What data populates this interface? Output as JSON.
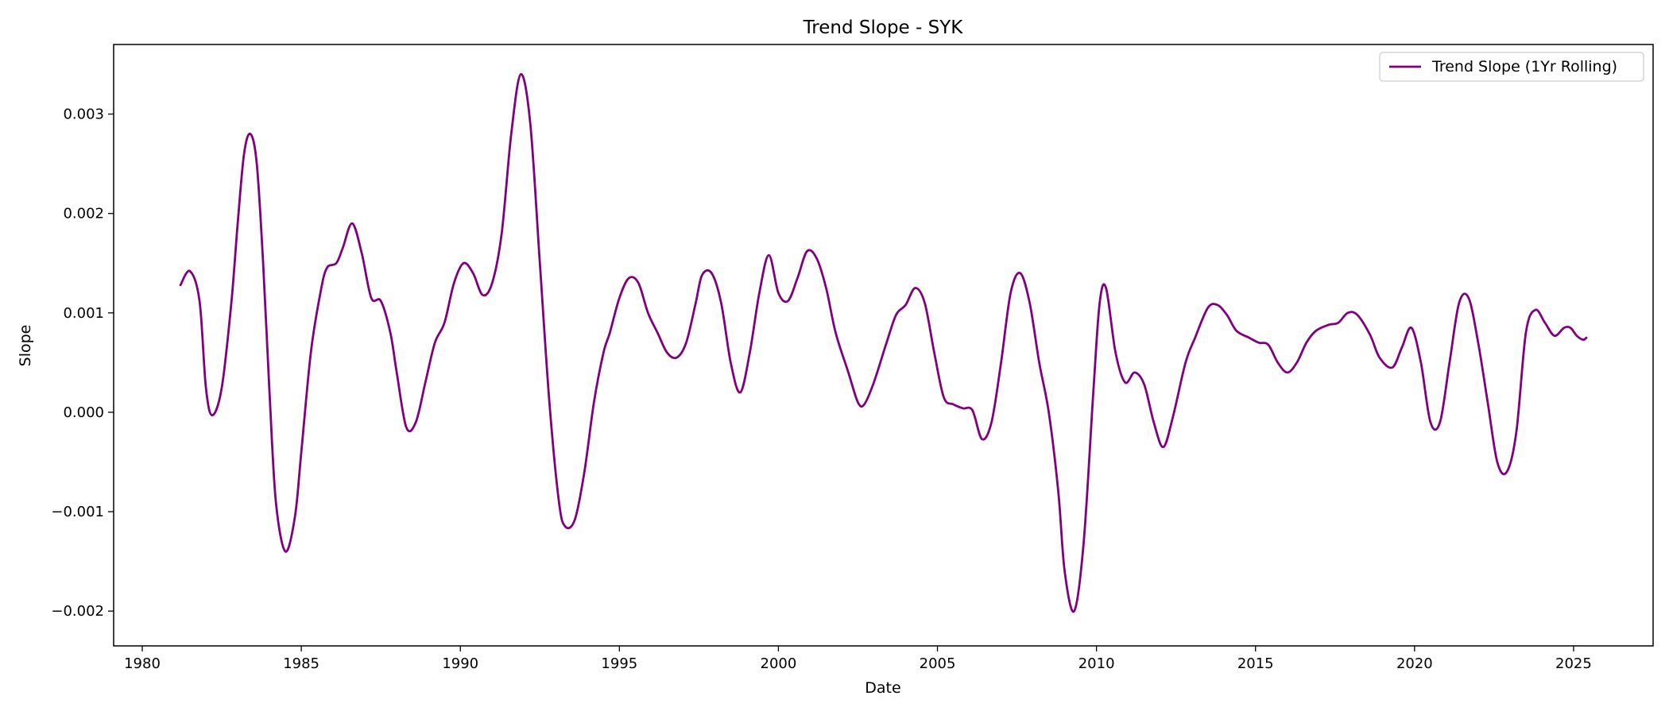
{
  "chart_data": {
    "type": "line",
    "title": "Trend Slope - SYK",
    "xlabel": "Date",
    "ylabel": "Slope",
    "xlim": [
      1979.1,
      2027.5
    ],
    "ylim": [
      -0.00235,
      0.0037
    ],
    "x_ticks": [
      1980,
      1985,
      1990,
      1995,
      2000,
      2005,
      2010,
      2015,
      2020,
      2025
    ],
    "x_tick_labels": [
      "1980",
      "1985",
      "1990",
      "1995",
      "2000",
      "2005",
      "2010",
      "2015",
      "2020",
      "2025"
    ],
    "y_ticks": [
      -0.002,
      -0.001,
      0.0,
      0.001,
      0.002,
      0.003
    ],
    "y_tick_labels": [
      "−0.002",
      "−0.001",
      "0.000",
      "0.001",
      "0.002",
      "0.003"
    ],
    "grid": false,
    "legend_position": "top-right",
    "series": [
      {
        "name": "Trend Slope (1Yr Rolling)",
        "color": "#800080",
        "points": [
          [
            1981.2,
            0.00128
          ],
          [
            1981.5,
            0.00142
          ],
          [
            1981.8,
            0.00112
          ],
          [
            1982.0,
            0.00025
          ],
          [
            1982.2,
            -3e-05
          ],
          [
            1982.5,
            0.00025
          ],
          [
            1982.8,
            0.0011
          ],
          [
            1983.0,
            0.0019
          ],
          [
            1983.2,
            0.0026
          ],
          [
            1983.4,
            0.0028
          ],
          [
            1983.6,
            0.0025
          ],
          [
            1983.8,
            0.0015
          ],
          [
            1984.0,
            0.0002
          ],
          [
            1984.2,
            -0.0009
          ],
          [
            1984.5,
            -0.0014
          ],
          [
            1984.8,
            -0.00105
          ],
          [
            1985.0,
            -0.0004
          ],
          [
            1985.3,
            0.0006
          ],
          [
            1985.6,
            0.0012
          ],
          [
            1985.8,
            0.00145
          ],
          [
            1986.1,
            0.0015
          ],
          [
            1986.3,
            0.00165
          ],
          [
            1986.6,
            0.0019
          ],
          [
            1986.9,
            0.0016
          ],
          [
            1987.2,
            0.00115
          ],
          [
            1987.5,
            0.00112
          ],
          [
            1987.8,
            0.0008
          ],
          [
            1988.0,
            0.0004
          ],
          [
            1988.3,
            -0.00015
          ],
          [
            1988.6,
            -0.0001
          ],
          [
            1988.9,
            0.0003
          ],
          [
            1989.2,
            0.0007
          ],
          [
            1989.5,
            0.0009
          ],
          [
            1989.8,
            0.0013
          ],
          [
            1990.1,
            0.0015
          ],
          [
            1990.4,
            0.0014
          ],
          [
            1990.7,
            0.00118
          ],
          [
            1991.0,
            0.0013
          ],
          [
            1991.3,
            0.0018
          ],
          [
            1991.6,
            0.0028
          ],
          [
            1991.9,
            0.0034
          ],
          [
            1992.2,
            0.0029
          ],
          [
            1992.5,
            0.0015
          ],
          [
            1992.8,
            0.0001
          ],
          [
            1993.1,
            -0.0009
          ],
          [
            1993.3,
            -0.00115
          ],
          [
            1993.6,
            -0.00108
          ],
          [
            1993.9,
            -0.0006
          ],
          [
            1994.2,
            0.0001
          ],
          [
            1994.5,
            0.0006
          ],
          [
            1994.7,
            0.0008
          ],
          [
            1995.0,
            0.00115
          ],
          [
            1995.3,
            0.00135
          ],
          [
            1995.6,
            0.0013
          ],
          [
            1995.9,
            0.001
          ],
          [
            1996.2,
            0.0008
          ],
          [
            1996.5,
            0.0006
          ],
          [
            1996.8,
            0.00055
          ],
          [
            1997.1,
            0.0007
          ],
          [
            1997.4,
            0.0011
          ],
          [
            1997.6,
            0.00138
          ],
          [
            1997.9,
            0.0014
          ],
          [
            1998.2,
            0.0011
          ],
          [
            1998.5,
            0.0005
          ],
          [
            1998.8,
            0.0002
          ],
          [
            1999.1,
            0.0006
          ],
          [
            1999.4,
            0.0012
          ],
          [
            1999.7,
            0.00158
          ],
          [
            2000.0,
            0.0012
          ],
          [
            2000.3,
            0.00112
          ],
          [
            2000.6,
            0.00135
          ],
          [
            2000.9,
            0.00162
          ],
          [
            2001.2,
            0.00155
          ],
          [
            2001.5,
            0.00125
          ],
          [
            2001.8,
            0.0008
          ],
          [
            2002.2,
            0.0004
          ],
          [
            2002.5,
            0.0001
          ],
          [
            2002.7,
            8e-05
          ],
          [
            2003.0,
            0.0003
          ],
          [
            2003.4,
            0.0007
          ],
          [
            2003.7,
            0.00098
          ],
          [
            2004.0,
            0.00108
          ],
          [
            2004.3,
            0.00125
          ],
          [
            2004.6,
            0.0011
          ],
          [
            2004.9,
            0.0006
          ],
          [
            2005.2,
            0.00015
          ],
          [
            2005.5,
            8e-05
          ],
          [
            2005.8,
            4e-05
          ],
          [
            2006.1,
            2e-05
          ],
          [
            2006.4,
            -0.00027
          ],
          [
            2006.7,
            -0.0001
          ],
          [
            2007.0,
            0.0005
          ],
          [
            2007.3,
            0.0012
          ],
          [
            2007.6,
            0.0014
          ],
          [
            2007.9,
            0.0011
          ],
          [
            2008.2,
            0.0005
          ],
          [
            2008.5,
            0.0
          ],
          [
            2008.8,
            -0.0008
          ],
          [
            2009.0,
            -0.0016
          ],
          [
            2009.3,
            -0.002
          ],
          [
            2009.6,
            -0.0013
          ],
          [
            2009.9,
            0.0002
          ],
          [
            2010.1,
            0.0011
          ],
          [
            2010.3,
            0.00125
          ],
          [
            2010.6,
            0.0006
          ],
          [
            2010.9,
            0.0003
          ],
          [
            2011.2,
            0.0004
          ],
          [
            2011.5,
            0.00028
          ],
          [
            2011.8,
            -0.0001
          ],
          [
            2012.1,
            -0.00035
          ],
          [
            2012.4,
            -5e-05
          ],
          [
            2012.8,
            0.0005
          ],
          [
            2013.1,
            0.00075
          ],
          [
            2013.5,
            0.00105
          ],
          [
            2013.8,
            0.00108
          ],
          [
            2014.1,
            0.00098
          ],
          [
            2014.4,
            0.00082
          ],
          [
            2014.8,
            0.00075
          ],
          [
            2015.1,
            0.0007
          ],
          [
            2015.4,
            0.00068
          ],
          [
            2015.7,
            0.0005
          ],
          [
            2016.0,
            0.0004
          ],
          [
            2016.3,
            0.0005
          ],
          [
            2016.6,
            0.0007
          ],
          [
            2016.9,
            0.00082
          ],
          [
            2017.3,
            0.00088
          ],
          [
            2017.6,
            0.0009
          ],
          [
            2017.9,
            0.001
          ],
          [
            2018.2,
            0.00098
          ],
          [
            2018.6,
            0.00078
          ],
          [
            2018.9,
            0.00055
          ],
          [
            2019.3,
            0.00045
          ],
          [
            2019.6,
            0.00065
          ],
          [
            2019.9,
            0.00085
          ],
          [
            2020.2,
            0.0005
          ],
          [
            2020.5,
            -0.0001
          ],
          [
            2020.8,
            -0.0001
          ],
          [
            2021.1,
            0.0005
          ],
          [
            2021.4,
            0.0011
          ],
          [
            2021.7,
            0.00115
          ],
          [
            2022.0,
            0.0007
          ],
          [
            2022.3,
            0.0001
          ],
          [
            2022.6,
            -0.0005
          ],
          [
            2022.9,
            -0.0006
          ],
          [
            2023.2,
            -0.0002
          ],
          [
            2023.5,
            0.0008
          ],
          [
            2023.8,
            0.00103
          ],
          [
            2024.1,
            0.0009
          ],
          [
            2024.4,
            0.00077
          ],
          [
            2024.7,
            0.00085
          ],
          [
            2024.9,
            0.00085
          ],
          [
            2025.1,
            0.00077
          ],
          [
            2025.3,
            0.00073
          ],
          [
            2025.4,
            0.00075
          ]
        ]
      }
    ]
  }
}
